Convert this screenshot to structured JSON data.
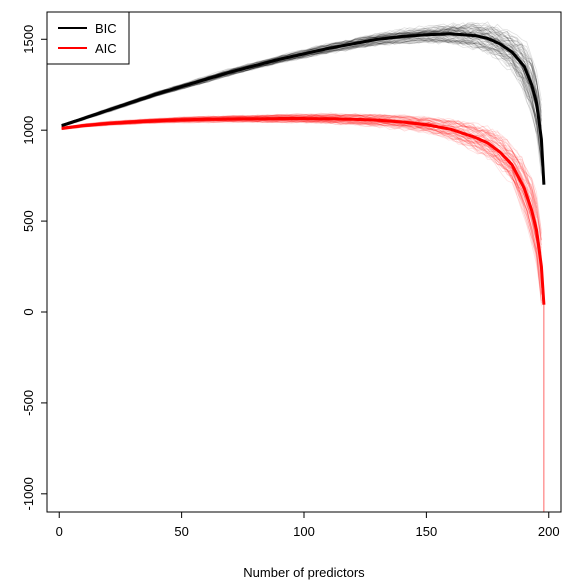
{
  "chart_data": {
    "type": "line",
    "title": "",
    "xlabel": "Number of predictors",
    "ylabel": "",
    "xlim": [
      -5,
      205
    ],
    "ylim": [
      -1100,
      1650
    ],
    "xticks": [
      0,
      50,
      100,
      150,
      200
    ],
    "yticks": [
      -1000,
      -500,
      0,
      500,
      1000,
      1500
    ],
    "xtick_labels": [
      "0",
      "50",
      "100",
      "150",
      "200"
    ],
    "ytick_labels": [
      "-1000",
      "-500",
      "0",
      "500",
      "1000",
      "1500"
    ],
    "grid": false,
    "legend": {
      "position": "top-left",
      "entries": [
        "BIC",
        "AIC"
      ]
    },
    "series": [
      {
        "name": "BIC",
        "color": "#000000",
        "x": [
          1,
          10,
          20,
          30,
          40,
          50,
          60,
          70,
          80,
          90,
          100,
          110,
          120,
          130,
          140,
          150,
          160,
          170,
          175,
          180,
          185,
          190,
          193,
          195,
          197,
          198
        ],
        "y": [
          1025,
          1065,
          1110,
          1155,
          1200,
          1240,
          1280,
          1320,
          1355,
          1390,
          1420,
          1450,
          1475,
          1500,
          1515,
          1525,
          1530,
          1520,
          1505,
          1475,
          1430,
          1350,
          1250,
          1150,
          950,
          700
        ]
      },
      {
        "name": "AIC",
        "color": "#ff0000",
        "x": [
          1,
          10,
          20,
          30,
          40,
          50,
          60,
          70,
          80,
          90,
          100,
          110,
          120,
          130,
          140,
          150,
          160,
          170,
          175,
          180,
          185,
          190,
          193,
          195,
          197,
          198
        ],
        "y": [
          1010,
          1025,
          1037,
          1045,
          1052,
          1057,
          1060,
          1062,
          1063,
          1064,
          1064,
          1063,
          1060,
          1055,
          1045,
          1030,
          1005,
          960,
          930,
          880,
          810,
          680,
          560,
          450,
          250,
          40
        ]
      }
    ],
    "spread": {
      "BIC": {
        "band": [
          0,
          5,
          10,
          20,
          40,
          60,
          100,
          150,
          200
        ]
      },
      "AIC": {
        "band": [
          0,
          5,
          10,
          20,
          40,
          60,
          120,
          250,
          500
        ]
      }
    },
    "min_spike": {
      "series": "AIC",
      "x": 198,
      "y_min": -1100
    }
  }
}
